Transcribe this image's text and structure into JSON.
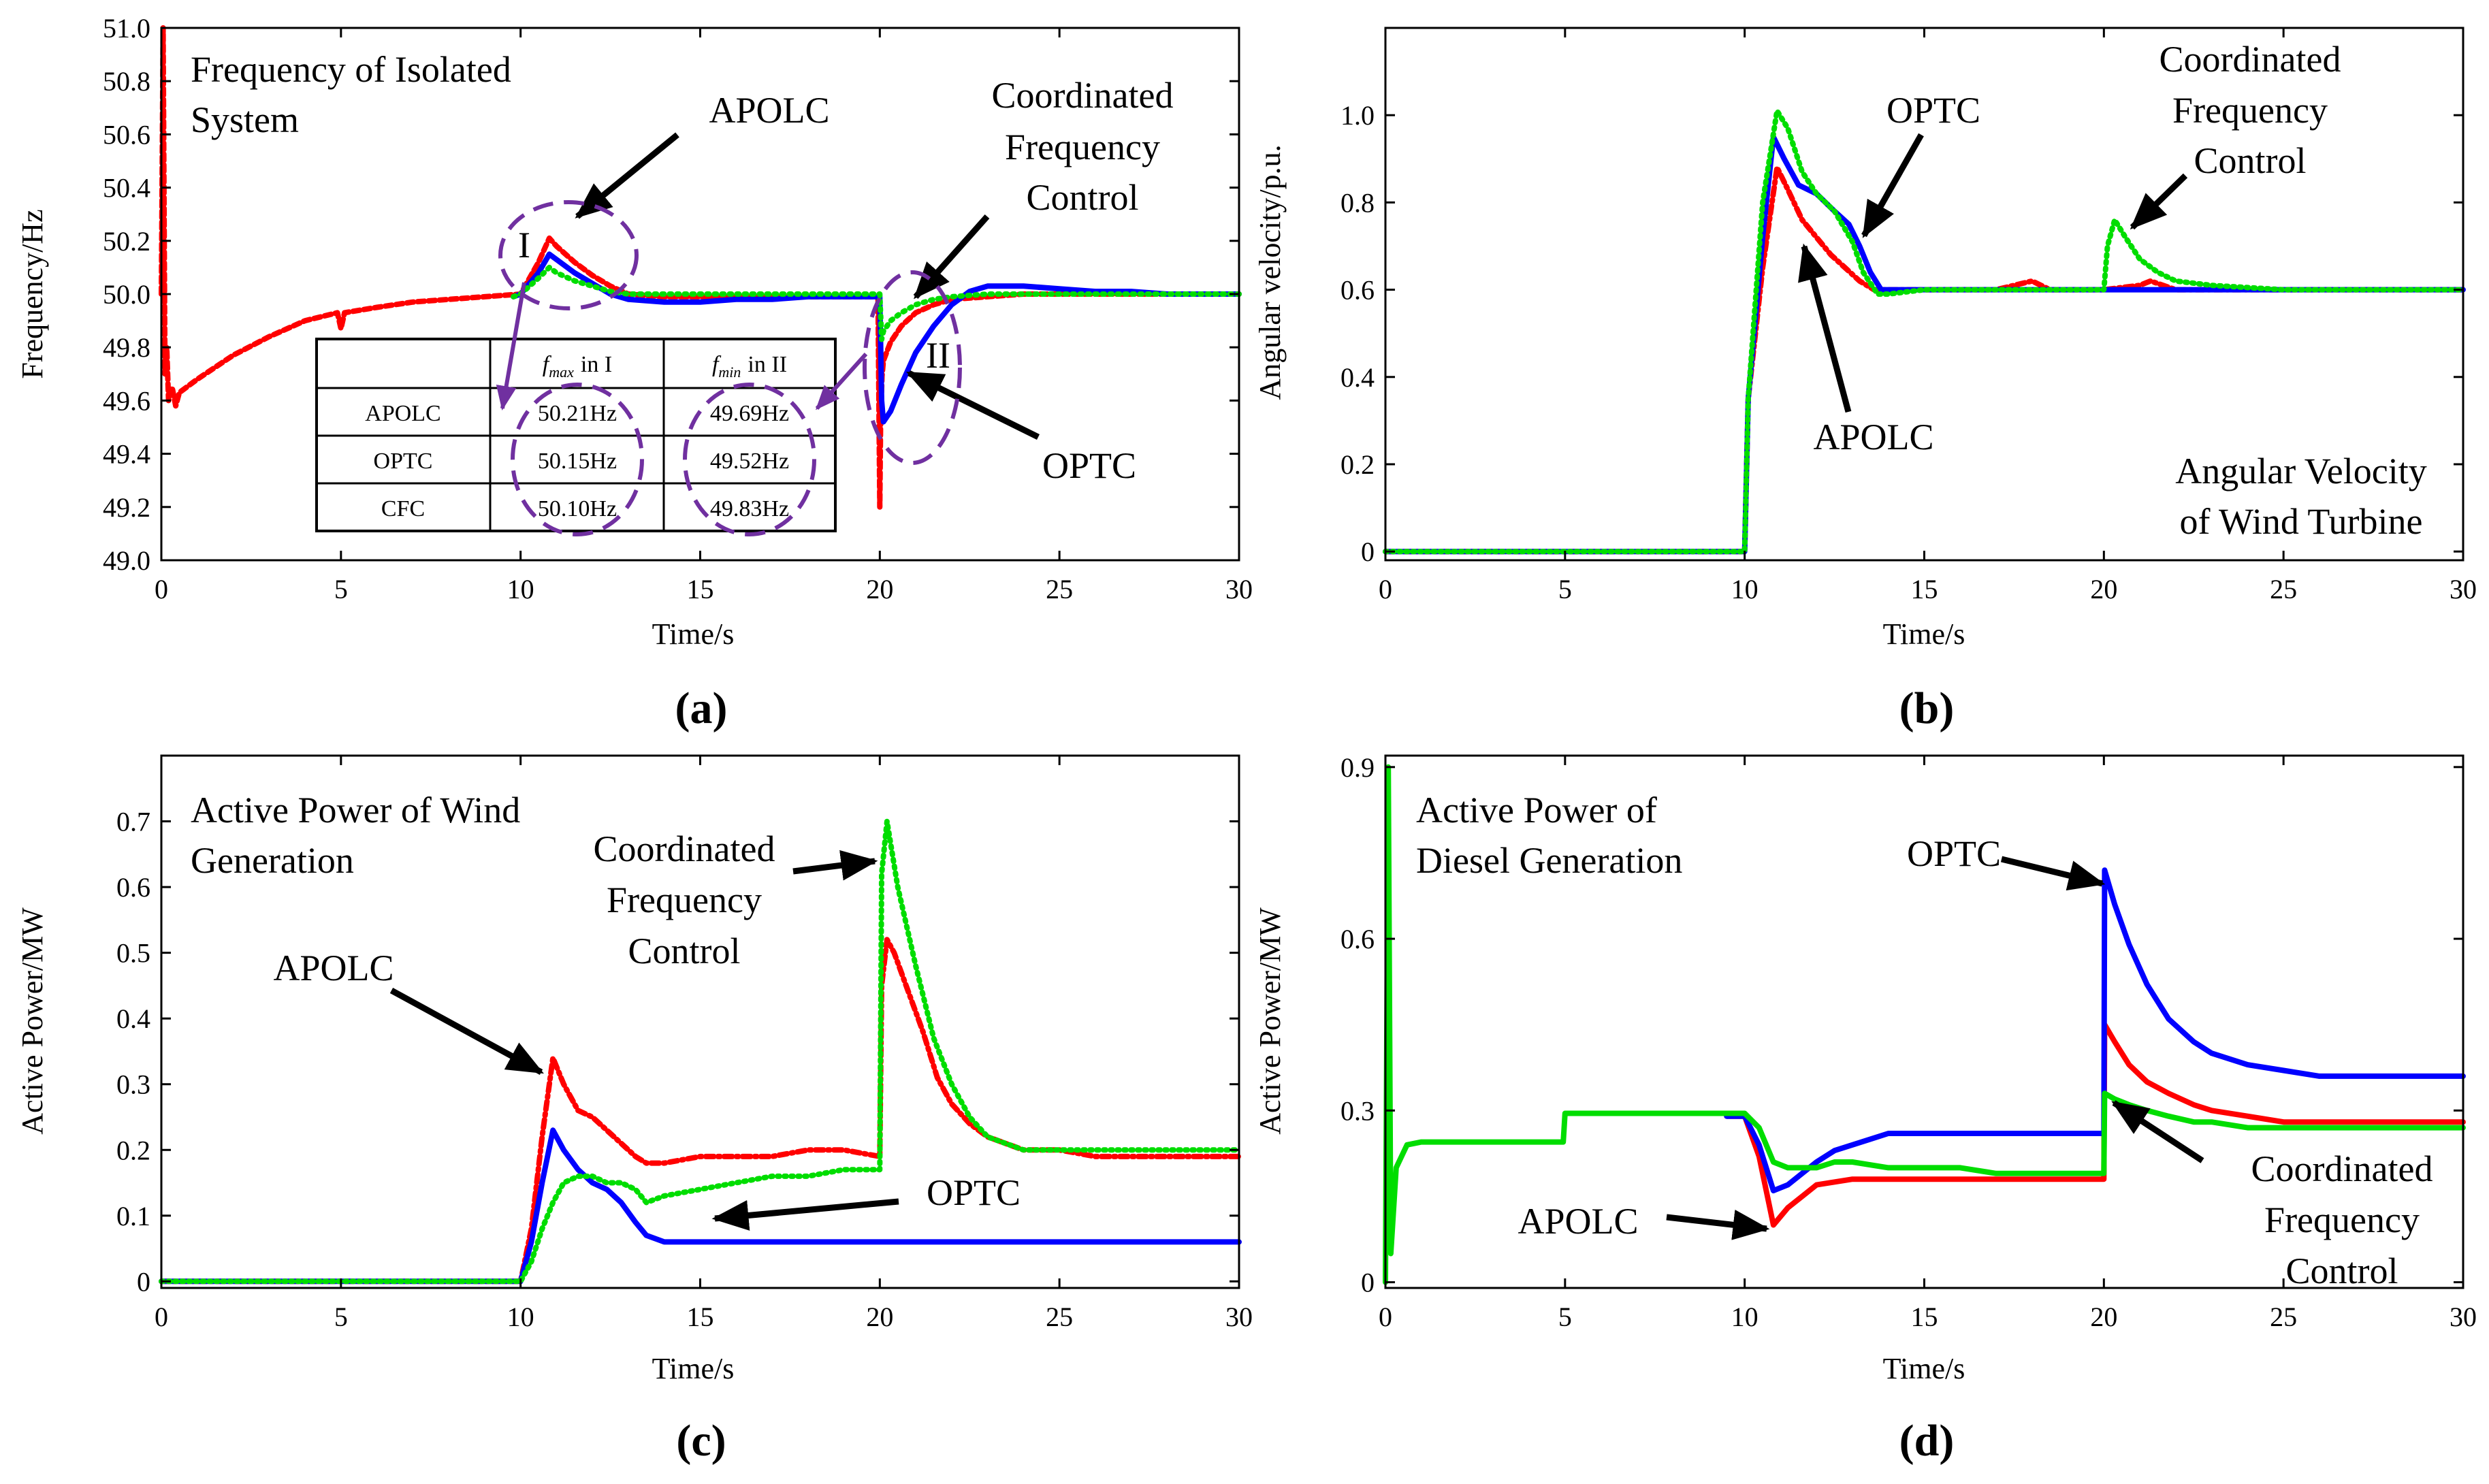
{
  "colors": {
    "APOLC": "#ff0000",
    "OPTC": "#0000ff",
    "CFC": "#00dd00",
    "marker": "#7030a0"
  },
  "chart_data": [
    {
      "type": "line",
      "caption": "(a)",
      "title": "Frequency of Isolated System",
      "xlabel": "Time/s",
      "ylabel": "Frequency/Hz",
      "xlim": [
        0,
        30
      ],
      "ylim": [
        49.0,
        51.0
      ],
      "xticks": [
        "0",
        "5",
        "10",
        "15",
        "20",
        "25",
        "30"
      ],
      "yticks": [
        "49.0",
        "49.2",
        "49.4",
        "49.6",
        "49.8",
        "50.0",
        "50.2",
        "50.4",
        "50.6",
        "50.8",
        "51.0"
      ],
      "series": [
        {
          "name": "APOLC",
          "color": "#ff0000",
          "dash": "10 6",
          "x": [
            0,
            0.05,
            0.1,
            0.15,
            0.2,
            0.3,
            0.4,
            0.5,
            1,
            2,
            3,
            4,
            4.9,
            5,
            5.1,
            6,
            7,
            8,
            9,
            10,
            10.5,
            10.8,
            11,
            11.5,
            12,
            12.5,
            13,
            14,
            15,
            16,
            17,
            18,
            19,
            19.95,
            20,
            20.02,
            20.06,
            20.1,
            20.3,
            20.6,
            21,
            21.5,
            22,
            23,
            24,
            25,
            26,
            27,
            28,
            29,
            30
          ],
          "y": [
            50.0,
            51.0,
            49.7,
            49.8,
            49.6,
            49.65,
            49.58,
            49.63,
            49.68,
            49.77,
            49.84,
            49.9,
            49.93,
            49.87,
            49.93,
            49.95,
            49.97,
            49.98,
            49.99,
            50.0,
            50.12,
            50.21,
            50.18,
            50.12,
            50.07,
            50.03,
            50.0,
            49.99,
            49.99,
            49.99,
            49.99,
            49.99,
            49.99,
            49.99,
            49.2,
            49.5,
            49.69,
            49.75,
            49.82,
            49.88,
            49.93,
            49.96,
            49.98,
            49.99,
            50.0,
            50.0,
            50.0,
            50.0,
            50.0,
            50.0,
            50.0
          ]
        },
        {
          "name": "OPTC",
          "color": "#0000ff",
          "dash": "",
          "x": [
            9.8,
            10,
            10.5,
            10.8,
            11,
            11.5,
            12,
            12.5,
            13,
            14,
            15,
            16,
            17,
            18,
            19,
            20,
            20.05,
            20.1,
            20.3,
            20.6,
            21,
            21.5,
            22,
            22.5,
            23,
            24,
            25,
            26,
            27,
            28,
            29,
            30
          ],
          "y": [
            49.99,
            50.0,
            50.08,
            50.15,
            50.13,
            50.08,
            50.04,
            50.0,
            49.98,
            49.97,
            49.97,
            49.98,
            49.98,
            49.99,
            49.99,
            49.99,
            49.6,
            49.52,
            49.56,
            49.66,
            49.78,
            49.88,
            49.96,
            50.01,
            50.03,
            50.03,
            50.02,
            50.01,
            50.01,
            50.0,
            50.0,
            50.0
          ]
        },
        {
          "name": "CFC",
          "color": "#00dd00",
          "dash": "3 8",
          "x": [
            9.8,
            10,
            10.5,
            10.8,
            11,
            11.5,
            12,
            12.5,
            13,
            14,
            15,
            16,
            17,
            18,
            19,
            20,
            20.05,
            20.1,
            20.3,
            20.6,
            21,
            21.5,
            22,
            23,
            24,
            25,
            26,
            27,
            28,
            29,
            30
          ],
          "y": [
            49.99,
            50.0,
            50.06,
            50.1,
            50.08,
            50.05,
            50.03,
            50.01,
            50.0,
            50.0,
            50.0,
            50.0,
            50.0,
            50.0,
            50.0,
            50.0,
            49.83,
            49.86,
            49.9,
            49.93,
            49.96,
            49.98,
            49.99,
            50.0,
            50.0,
            50.0,
            50.0,
            50.0,
            50.0,
            50.0,
            50.0
          ]
        }
      ],
      "annotations": [
        "APOLC",
        "Coordinated",
        "Frequency",
        "Control",
        "OPTC",
        "I",
        "II"
      ],
      "inset_table": {
        "headers": [
          "",
          "in I",
          "in II"
        ],
        "header_symbols": [
          "f",
          "f"
        ],
        "header_subscripts": [
          "max",
          "min"
        ],
        "rows": [
          [
            "APOLC",
            "50.21Hz",
            "49.69Hz"
          ],
          [
            "OPTC",
            "50.15Hz",
            "49.52Hz"
          ],
          [
            "CFC",
            "50.10Hz",
            "49.83Hz"
          ]
        ]
      }
    },
    {
      "type": "line",
      "caption": "(b)",
      "title": "Angular Velocity of Wind Turbine",
      "xlabel": "Time/s",
      "ylabel": "Angular velocity/p.u.",
      "xlim": [
        0,
        30
      ],
      "ylim": [
        -0.02,
        1.2
      ],
      "xticks": [
        "0",
        "5",
        "10",
        "15",
        "20",
        "25",
        "30"
      ],
      "yticks": [
        "0",
        "0.2",
        "0.4",
        "0.6",
        "0.8",
        "1.0"
      ],
      "ytick_values": [
        0,
        0.2,
        0.4,
        0.6,
        0.8,
        1.0
      ],
      "series": [
        {
          "name": "APOLC",
          "color": "#ff0000",
          "dash": "12 6 3 6",
          "x": [
            0,
            10,
            10.1,
            10.5,
            10.9,
            11.2,
            11.6,
            12,
            12.4,
            12.8,
            13.2,
            13.6,
            14,
            15,
            16,
            17,
            18,
            18.5,
            19,
            20,
            21,
            21.3,
            22,
            25,
            30
          ],
          "y": [
            0,
            0,
            0.35,
            0.65,
            0.88,
            0.83,
            0.76,
            0.72,
            0.68,
            0.65,
            0.62,
            0.6,
            0.6,
            0.6,
            0.6,
            0.6,
            0.62,
            0.6,
            0.6,
            0.6,
            0.61,
            0.62,
            0.6,
            0.6,
            0.6
          ]
        },
        {
          "name": "OPTC",
          "color": "#0000ff",
          "dash": "",
          "x": [
            0,
            10,
            10.1,
            10.5,
            10.8,
            11.1,
            11.5,
            12,
            12.5,
            12.9,
            13.2,
            13.5,
            13.8,
            14,
            15,
            20,
            25,
            30
          ],
          "y": [
            0,
            0,
            0.35,
            0.72,
            0.95,
            0.9,
            0.84,
            0.82,
            0.78,
            0.75,
            0.7,
            0.64,
            0.6,
            0.6,
            0.6,
            0.6,
            0.6,
            0.6
          ]
        },
        {
          "name": "CFC",
          "color": "#00dd00",
          "dash": "3 7",
          "x": [
            0,
            10,
            10.1,
            10.5,
            10.9,
            11.2,
            11.6,
            12,
            12.5,
            13,
            13.3,
            13.7,
            14,
            15,
            16,
            19,
            20,
            20.1,
            20.3,
            20.6,
            21,
            21.5,
            22,
            23,
            25,
            30
          ],
          "y": [
            0,
            0,
            0.35,
            0.8,
            1.01,
            0.97,
            0.87,
            0.82,
            0.78,
            0.71,
            0.64,
            0.59,
            0.59,
            0.6,
            0.6,
            0.6,
            0.6,
            0.7,
            0.76,
            0.72,
            0.67,
            0.64,
            0.62,
            0.61,
            0.6,
            0.6
          ]
        }
      ],
      "annotations": [
        "OPTC",
        "Coordinated",
        "Frequency",
        "Control",
        "APOLC"
      ]
    },
    {
      "type": "line",
      "caption": "(c)",
      "title": "Active Power of Wind Generation",
      "xlabel": "Time/s",
      "ylabel": "Active Power/MW",
      "xlim": [
        0,
        30
      ],
      "ylim": [
        -0.01,
        0.8
      ],
      "xticks": [
        "0",
        "5",
        "10",
        "15",
        "20",
        "25",
        "30"
      ],
      "yticks": [
        "0",
        "0.1",
        "0.2",
        "0.3",
        "0.4",
        "0.5",
        "0.6",
        "0.7"
      ],
      "ytick_values": [
        0,
        0.1,
        0.2,
        0.3,
        0.4,
        0.5,
        0.6,
        0.7
      ],
      "series": [
        {
          "name": "APOLC",
          "color": "#ff0000",
          "dash": "12 6 3 6",
          "x": [
            0,
            10,
            10.3,
            10.6,
            10.9,
            11.2,
            11.6,
            12,
            12.4,
            12.8,
            13.2,
            13.5,
            14,
            15,
            16,
            17,
            18,
            19,
            20,
            20.05,
            20.2,
            20.4,
            20.8,
            21.2,
            21.6,
            22,
            22.5,
            23,
            24,
            25,
            26,
            30
          ],
          "y": [
            0,
            0,
            0.08,
            0.22,
            0.34,
            0.3,
            0.26,
            0.25,
            0.23,
            0.21,
            0.19,
            0.18,
            0.18,
            0.19,
            0.19,
            0.19,
            0.2,
            0.2,
            0.19,
            0.45,
            0.52,
            0.5,
            0.44,
            0.38,
            0.31,
            0.27,
            0.24,
            0.22,
            0.2,
            0.2,
            0.19,
            0.19
          ]
        },
        {
          "name": "OPTC",
          "color": "#0000ff",
          "dash": "",
          "x": [
            0,
            10,
            10.3,
            10.6,
            10.9,
            11.2,
            11.6,
            12,
            12.4,
            12.8,
            13.2,
            13.5,
            14,
            15,
            20,
            25,
            30
          ],
          "y": [
            0,
            0,
            0.06,
            0.15,
            0.23,
            0.2,
            0.17,
            0.15,
            0.14,
            0.12,
            0.09,
            0.07,
            0.06,
            0.06,
            0.06,
            0.06,
            0.06
          ]
        },
        {
          "name": "CFC",
          "color": "#00dd00",
          "dash": "3 7",
          "x": [
            0,
            10,
            10.3,
            10.6,
            10.9,
            11.2,
            11.6,
            12,
            12.4,
            12.8,
            13.2,
            13.5,
            14,
            15,
            16,
            17,
            18,
            19,
            20,
            20.05,
            20.2,
            20.5,
            21,
            21.5,
            22,
            22.5,
            23,
            24,
            25,
            26,
            30
          ],
          "y": [
            0,
            0,
            0.03,
            0.08,
            0.12,
            0.15,
            0.16,
            0.16,
            0.15,
            0.15,
            0.14,
            0.12,
            0.13,
            0.14,
            0.15,
            0.16,
            0.16,
            0.17,
            0.17,
            0.62,
            0.7,
            0.6,
            0.48,
            0.37,
            0.3,
            0.25,
            0.22,
            0.2,
            0.2,
            0.2,
            0.2
          ]
        }
      ],
      "annotations": [
        "Coordinated",
        "Frequency",
        "Control",
        "APOLC",
        "OPTC"
      ]
    },
    {
      "type": "line",
      "caption": "(d)",
      "title": "Active Power of Diesel Generation",
      "xlabel": "Time/s",
      "ylabel": "Active Power/MW",
      "xlim": [
        0,
        30
      ],
      "ylim": [
        -0.01,
        0.92
      ],
      "xticks": [
        "0",
        "5",
        "10",
        "15",
        "20",
        "25",
        "30"
      ],
      "yticks": [
        "0",
        "0.3",
        "0.6",
        "0.9"
      ],
      "ytick_values": [
        0,
        0.3,
        0.6,
        0.9
      ],
      "series": [
        {
          "name": "APOLC",
          "color": "#ff0000",
          "dash": "",
          "x": [
            9.5,
            10,
            10.4,
            10.8,
            11.2,
            11.6,
            12,
            13,
            14,
            15,
            16,
            17,
            18,
            19,
            20,
            20.02,
            20.3,
            20.7,
            21.2,
            21.8,
            22.5,
            23,
            24,
            25,
            26,
            28,
            30
          ],
          "y": [
            0.29,
            0.29,
            0.22,
            0.1,
            0.13,
            0.15,
            0.17,
            0.18,
            0.18,
            0.18,
            0.18,
            0.18,
            0.18,
            0.18,
            0.18,
            0.45,
            0.42,
            0.38,
            0.35,
            0.33,
            0.31,
            0.3,
            0.29,
            0.28,
            0.28,
            0.28,
            0.28
          ]
        },
        {
          "name": "OPTC",
          "color": "#0000ff",
          "dash": "",
          "x": [
            9.5,
            10,
            10.4,
            10.8,
            11.2,
            11.6,
            12,
            12.5,
            13,
            13.5,
            14,
            15,
            16,
            17,
            18,
            19,
            20,
            20.02,
            20.3,
            20.7,
            21.2,
            21.8,
            22.5,
            23,
            24,
            25,
            26,
            28,
            30
          ],
          "y": [
            0.29,
            0.29,
            0.24,
            0.16,
            0.17,
            0.19,
            0.21,
            0.23,
            0.24,
            0.25,
            0.26,
            0.26,
            0.26,
            0.26,
            0.26,
            0.26,
            0.26,
            0.72,
            0.66,
            0.59,
            0.52,
            0.46,
            0.42,
            0.4,
            0.38,
            0.37,
            0.36,
            0.36,
            0.36
          ]
        },
        {
          "name": "CFC",
          "color": "#00dd00",
          "dash": "",
          "x": [
            0,
            0.08,
            0.15,
            0.3,
            0.6,
            1,
            2,
            3,
            4,
            4.95,
            5,
            6,
            7,
            8,
            9,
            10,
            10.4,
            10.8,
            11.2,
            11.6,
            12,
            12.5,
            13,
            14,
            15,
            16,
            17,
            18,
            19,
            20,
            20.02,
            20.3,
            20.7,
            21.2,
            21.8,
            22.5,
            23,
            24,
            25,
            26,
            28,
            30
          ],
          "y": [
            0.0,
            0.9,
            0.05,
            0.2,
            0.24,
            0.245,
            0.245,
            0.245,
            0.245,
            0.245,
            0.295,
            0.295,
            0.295,
            0.295,
            0.295,
            0.295,
            0.27,
            0.21,
            0.2,
            0.2,
            0.2,
            0.21,
            0.21,
            0.2,
            0.2,
            0.2,
            0.19,
            0.19,
            0.19,
            0.19,
            0.33,
            0.32,
            0.31,
            0.3,
            0.29,
            0.28,
            0.28,
            0.27,
            0.27,
            0.27,
            0.27,
            0.27
          ]
        }
      ],
      "annotations": [
        "OPTC",
        "APOLC",
        "Coordinated",
        "Frequency",
        "Control"
      ]
    }
  ]
}
